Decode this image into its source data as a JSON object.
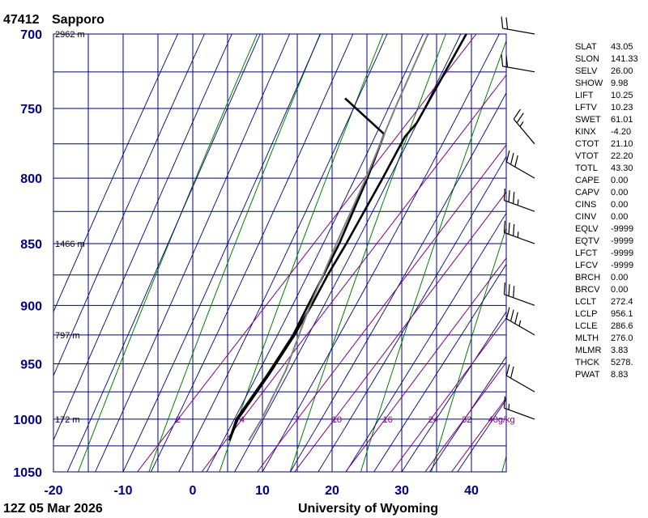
{
  "header": {
    "station_id": "47412",
    "station_name": "Sapporo"
  },
  "footer": {
    "time": "12Z 05 Mar 2026",
    "source": "University of Wyoming"
  },
  "colors": {
    "frame": "#000080",
    "isotherm": "#000080",
    "isobar": "#000080",
    "dry_adiabat": "#008000",
    "moist_adiabat": "#000080",
    "mixing_ratio": "#800080",
    "temperature": "#000000",
    "dewpoint": "#000000",
    "parcel": "#808080"
  },
  "chart_data": {
    "type": "line",
    "chart_kind": "skew-T log-P diagram",
    "xlim": [
      -20,
      45
    ],
    "ylim_pressure_hpa": [
      1050,
      700
    ],
    "pressure_scale": "log",
    "x_ticks": [
      "-20",
      "-10",
      "0",
      "10",
      "20",
      "30",
      "40"
    ],
    "y_ticks": [
      "700",
      "750",
      "800",
      "850",
      "900",
      "950",
      "1000",
      "1050"
    ],
    "height_labels": [
      {
        "p": 700,
        "label": "2962 m"
      },
      {
        "p": 850,
        "label": "1466 m"
      },
      {
        "p": 925,
        "label": "797 m"
      },
      {
        "p": 1000,
        "label": "172 m"
      }
    ],
    "mixing_ratio_labels": [
      "2",
      "4",
      "7",
      "10",
      "16",
      "24",
      "32",
      "40g/kg"
    ],
    "mixing_ratio_values": [
      2,
      4,
      7,
      10,
      16,
      24,
      32,
      40
    ],
    "series": [
      {
        "values": [
          {
            "p": 1020,
            "t": 1.4
          },
          {
            "p": 1000,
            "t": 0.0
          },
          {
            "p": 960,
            "t": -1.0
          },
          {
            "p": 925,
            "t": -2.2
          },
          {
            "p": 900,
            "t": -3.4
          },
          {
            "p": 875,
            "t": -4.8
          },
          {
            "p": 850,
            "t": -6.0
          },
          {
            "p": 800,
            "t": -8.8
          },
          {
            "p": 770,
            "t": -10.7
          },
          {
            "p": 760,
            "t": -10.7
          },
          {
            "p": 700,
            "t": -14.5
          }
        ]
      },
      {
        "values": [
          {
            "p": 1020,
            "t": 1.4
          },
          {
            "p": 1000,
            "t": -0.2
          },
          {
            "p": 960,
            "t": -1.2
          },
          {
            "p": 925,
            "t": -2.4
          },
          {
            "p": 900,
            "t": -3.9
          },
          {
            "p": 875,
            "t": -5.4
          },
          {
            "p": 850,
            "t": -7.0
          },
          {
            "p": 800,
            "t": -11.0
          },
          {
            "p": 768,
            "t": -14.0
          },
          {
            "p": 743,
            "t": -24.0
          }
        ]
      },
      {
        "values": [
          {
            "p": 1020,
            "t": 4.2
          },
          {
            "p": 1000,
            "t": 3.4
          },
          {
            "p": 956,
            "t": 0.9
          },
          {
            "p": 900,
            "t": -3.6
          },
          {
            "p": 850,
            "t": -7.4
          },
          {
            "p": 800,
            "t": -11.2
          },
          {
            "p": 750,
            "t": -15.6
          },
          {
            "p": 700,
            "t": -20.0
          }
        ]
      }
    ],
    "wind_barbs": [
      {
        "p": 1000,
        "dir": 290,
        "spd_kt": 15
      },
      {
        "p": 975,
        "dir": 300,
        "spd_kt": 20
      },
      {
        "p": 925,
        "dir": 300,
        "spd_kt": 35
      },
      {
        "p": 900,
        "dir": 290,
        "spd_kt": 30
      },
      {
        "p": 850,
        "dir": 290,
        "spd_kt": 35
      },
      {
        "p": 825,
        "dir": 290,
        "spd_kt": 35
      },
      {
        "p": 800,
        "dir": 300,
        "spd_kt": 30
      },
      {
        "p": 775,
        "dir": 320,
        "spd_kt": 25
      },
      {
        "p": 725,
        "dir": 280,
        "spd_kt": 20
      },
      {
        "p": 700,
        "dir": 280,
        "spd_kt": 20
      }
    ]
  },
  "indices": [
    {
      "name": "SLAT",
      "value": "43.05"
    },
    {
      "name": "SLON",
      "value": "141.33"
    },
    {
      "name": "SELV",
      "value": "26.00"
    },
    {
      "name": "SHOW",
      "value": "9.98"
    },
    {
      "name": "LIFT",
      "value": "10.25"
    },
    {
      "name": "LFTV",
      "value": "10.23"
    },
    {
      "name": "SWET",
      "value": "61.01"
    },
    {
      "name": "KINX",
      "value": "-4.20"
    },
    {
      "name": "CTOT",
      "value": "21.10"
    },
    {
      "name": "VTOT",
      "value": "22.20"
    },
    {
      "name": "TOTL",
      "value": "43.30"
    },
    {
      "name": "CAPE",
      "value": "0.00"
    },
    {
      "name": "CAPV",
      "value": "0.00"
    },
    {
      "name": "CINS",
      "value": "0.00"
    },
    {
      "name": "CINV",
      "value": "0.00"
    },
    {
      "name": "EQLV",
      "value": "-9999"
    },
    {
      "name": "EQTV",
      "value": "-9999"
    },
    {
      "name": "LFCT",
      "value": "-9999"
    },
    {
      "name": "LFCV",
      "value": "-9999"
    },
    {
      "name": "BRCH",
      "value": "0.00"
    },
    {
      "name": "BRCV",
      "value": "0.00"
    },
    {
      "name": "LCLT",
      "value": "272.4"
    },
    {
      "name": "LCLP",
      "value": "956.1"
    },
    {
      "name": "LCLE",
      "value": "286.6"
    },
    {
      "name": "MLTH",
      "value": "276.0"
    },
    {
      "name": "MLMR",
      "value": "3.83"
    },
    {
      "name": "THCK",
      "value": "5278."
    },
    {
      "name": "PWAT",
      "value": "8.83"
    }
  ]
}
